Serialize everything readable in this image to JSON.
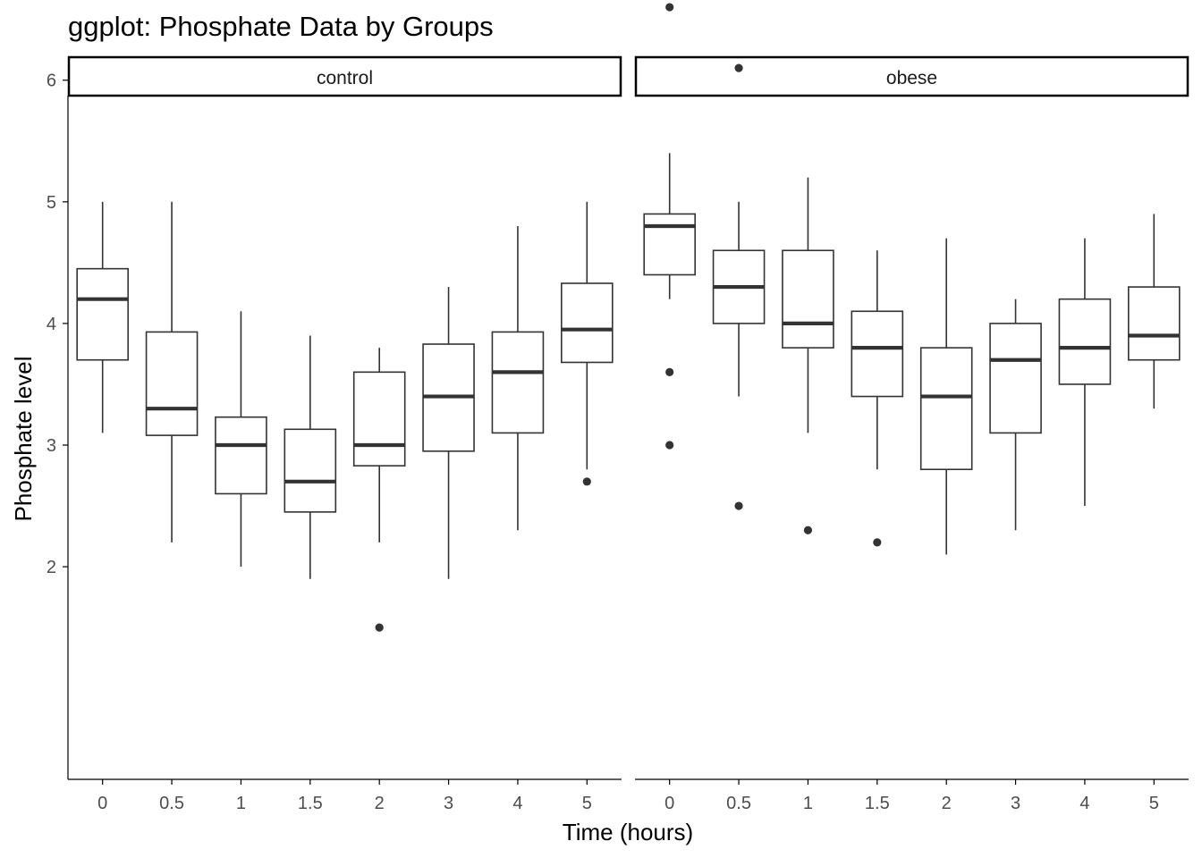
{
  "chart_data": {
    "type": "boxplot",
    "title": "ggplot: Phosphate Data by Groups",
    "xlabel": "Time (hours)",
    "ylabel": "Phosphate level",
    "ylim": [
      1.25,
      6.85
    ],
    "y_ticks": [
      2,
      3,
      4,
      5,
      6
    ],
    "categories": [
      "0",
      "0.5",
      "1",
      "1.5",
      "2",
      "3",
      "4",
      "5"
    ],
    "grid": false,
    "facets": [
      {
        "name": "control",
        "boxes": [
          {
            "x": "0",
            "lower_whisker": 3.1,
            "q1": 3.7,
            "median": 4.2,
            "q3": 4.45,
            "upper_whisker": 5.0,
            "outliers": []
          },
          {
            "x": "0.5",
            "lower_whisker": 2.2,
            "q1": 3.08,
            "median": 3.3,
            "q3": 3.93,
            "upper_whisker": 5.0,
            "outliers": []
          },
          {
            "x": "1",
            "lower_whisker": 2.0,
            "q1": 2.6,
            "median": 3.0,
            "q3": 3.23,
            "upper_whisker": 4.1,
            "outliers": []
          },
          {
            "x": "1.5",
            "lower_whisker": 1.9,
            "q1": 2.45,
            "median": 2.7,
            "q3": 3.13,
            "upper_whisker": 3.9,
            "outliers": []
          },
          {
            "x": "2",
            "lower_whisker": 2.2,
            "q1": 2.83,
            "median": 3.0,
            "q3": 3.6,
            "upper_whisker": 3.8,
            "outliers": [
              1.5
            ]
          },
          {
            "x": "3",
            "lower_whisker": 1.9,
            "q1": 2.95,
            "median": 3.4,
            "q3": 3.83,
            "upper_whisker": 4.3,
            "outliers": []
          },
          {
            "x": "4",
            "lower_whisker": 2.3,
            "q1": 3.1,
            "median": 3.6,
            "q3": 3.93,
            "upper_whisker": 4.8,
            "outliers": []
          },
          {
            "x": "5",
            "lower_whisker": 2.8,
            "q1": 3.68,
            "median": 3.95,
            "q3": 4.33,
            "upper_whisker": 5.0,
            "outliers": [
              2.7
            ]
          }
        ]
      },
      {
        "name": "obese",
        "boxes": [
          {
            "x": "0",
            "lower_whisker": 4.2,
            "q1": 4.4,
            "median": 4.8,
            "q3": 4.9,
            "upper_whisker": 5.4,
            "outliers": [
              6.6,
              3.6,
              3.0
            ]
          },
          {
            "x": "0.5",
            "lower_whisker": 3.4,
            "q1": 4.0,
            "median": 4.3,
            "q3": 4.6,
            "upper_whisker": 5.0,
            "outliers": [
              6.1,
              2.5
            ]
          },
          {
            "x": "1",
            "lower_whisker": 3.1,
            "q1": 3.8,
            "median": 4.0,
            "q3": 4.6,
            "upper_whisker": 5.2,
            "outliers": [
              2.3
            ]
          },
          {
            "x": "1.5",
            "lower_whisker": 2.8,
            "q1": 3.4,
            "median": 3.8,
            "q3": 4.1,
            "upper_whisker": 4.6,
            "outliers": [
              2.2
            ]
          },
          {
            "x": "2",
            "lower_whisker": 2.1,
            "q1": 2.8,
            "median": 3.4,
            "q3": 3.8,
            "upper_whisker": 4.7,
            "outliers": []
          },
          {
            "x": "3",
            "lower_whisker": 2.3,
            "q1": 3.1,
            "median": 3.7,
            "q3": 4.0,
            "upper_whisker": 4.2,
            "outliers": []
          },
          {
            "x": "4",
            "lower_whisker": 2.5,
            "q1": 3.5,
            "median": 3.8,
            "q3": 4.2,
            "upper_whisker": 4.7,
            "outliers": []
          },
          {
            "x": "5",
            "lower_whisker": 3.3,
            "q1": 3.7,
            "median": 3.9,
            "q3": 4.3,
            "upper_whisker": 4.9,
            "outliers": []
          }
        ]
      }
    ],
    "colors": {
      "box_outline": "#333333",
      "outlier": "#333333",
      "axis": "#000000",
      "strip_border": "#000000",
      "strip_fill": "#ffffff"
    }
  }
}
